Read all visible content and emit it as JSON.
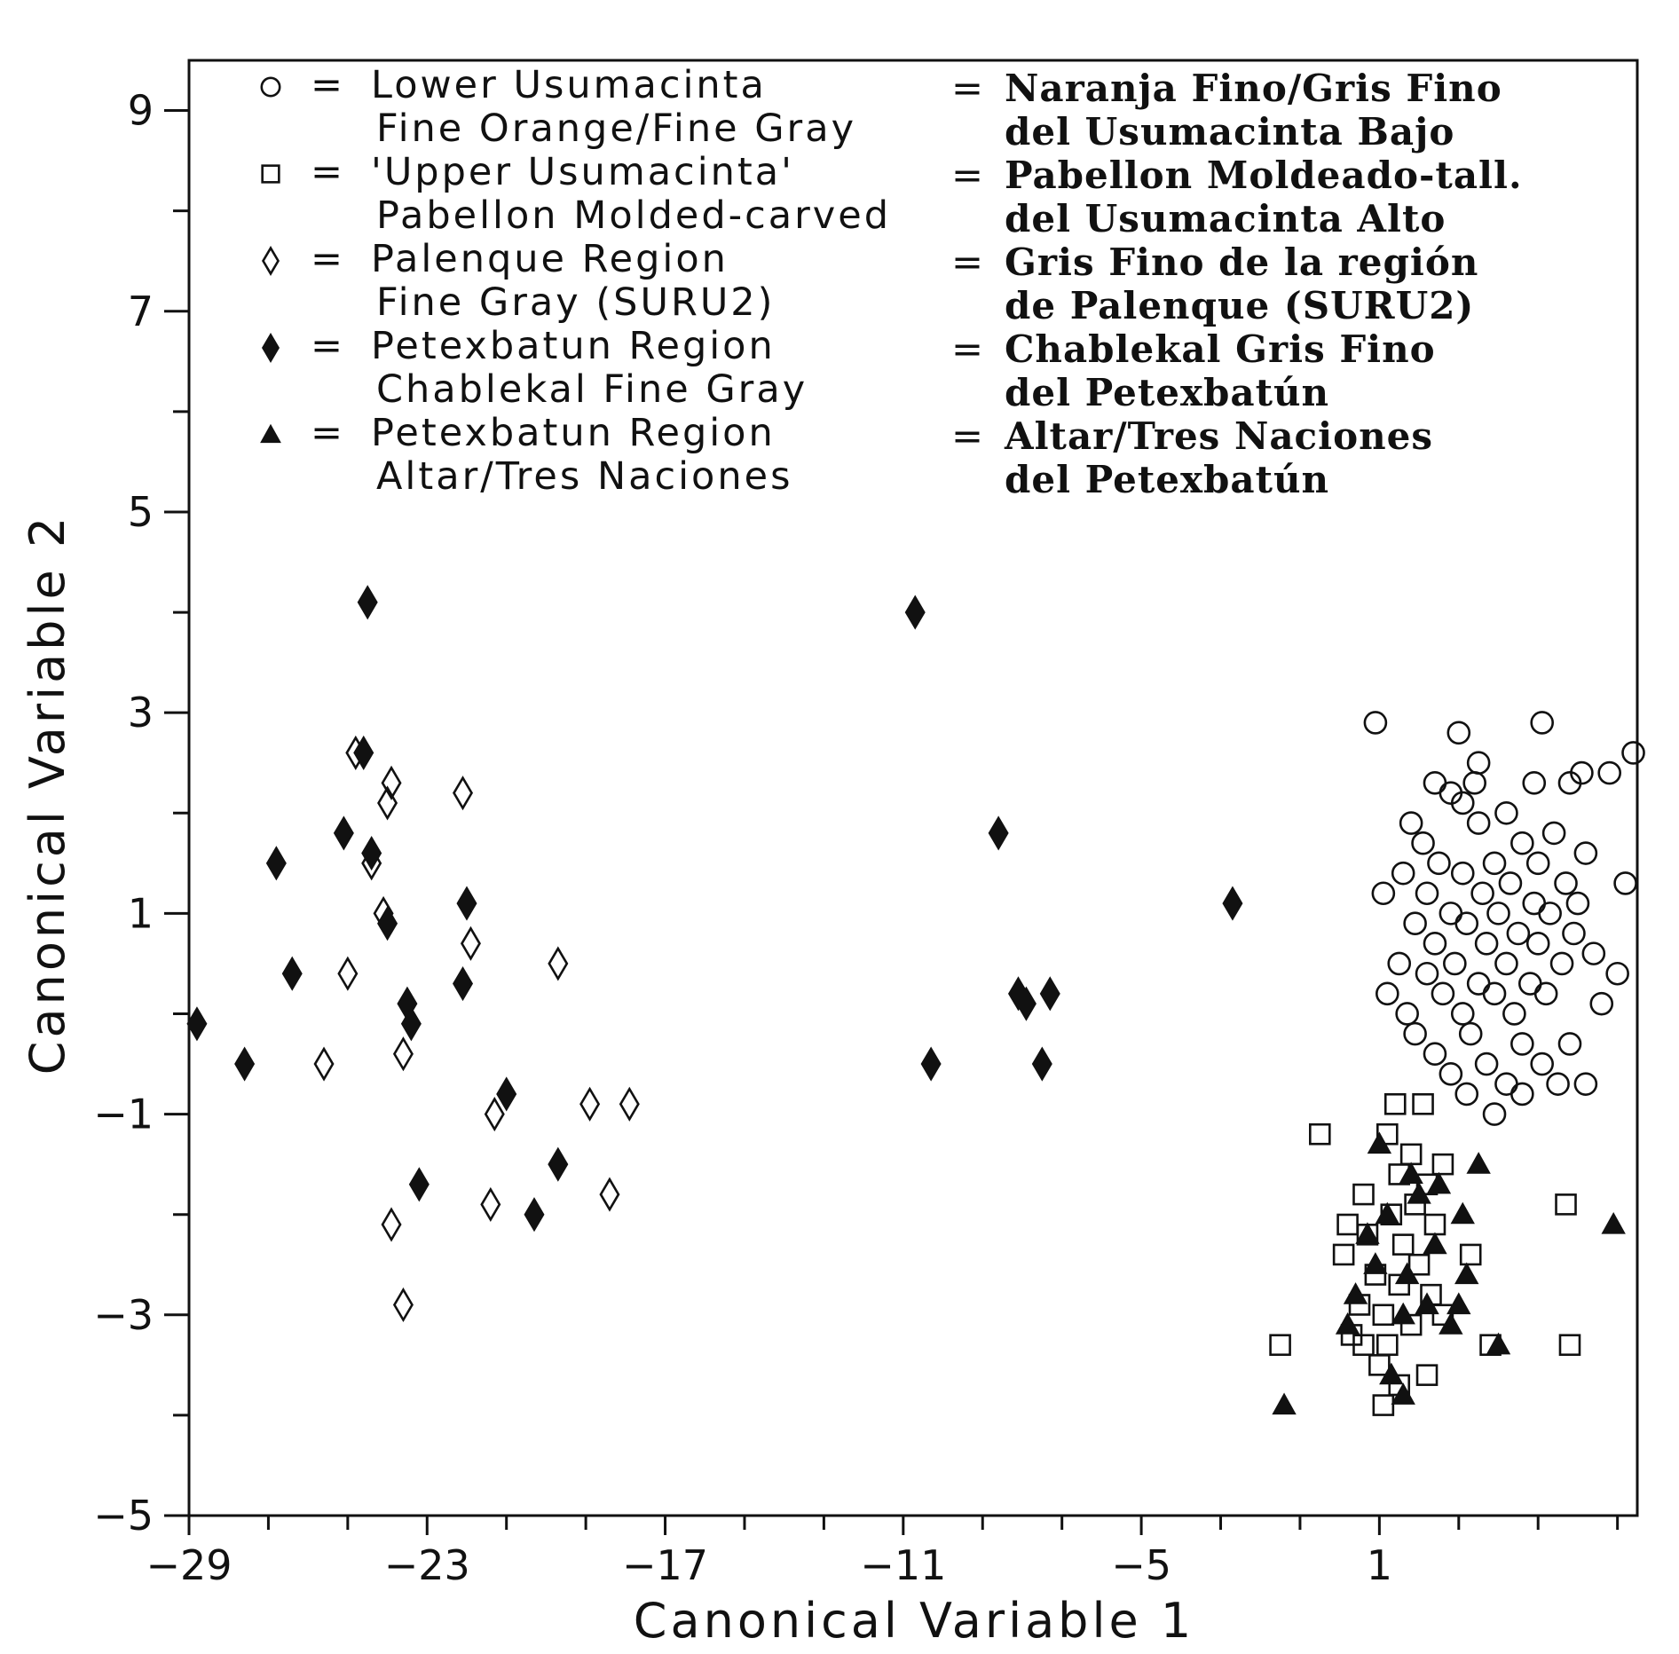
{
  "chart_data": {
    "type": "scatter",
    "xlabel": "Canonical Variable 1",
    "ylabel": "Canonical Variable 2",
    "xlim": [
      -29,
      7.5
    ],
    "ylim": [
      -5,
      9.5
    ],
    "xticks": [
      -29,
      -23,
      -17,
      -11,
      -5,
      1
    ],
    "yticks": [
      -5,
      -3,
      -1,
      1,
      3,
      5,
      7,
      9
    ],
    "legend_placement": "top, inside plot",
    "grid": false,
    "series": [
      {
        "key": "lower_usumacinta",
        "marker": "circle-open",
        "legend_en": [
          "Lower Usumacinta",
          "Fine Orange/Fine Gray"
        ],
        "legend_es": [
          "Naranja Fino/Gris Fino",
          "del Usumacinta Bajo"
        ],
        "points": [
          [
            0.9,
            2.9
          ],
          [
            5.1,
            2.9
          ],
          [
            3.0,
            2.8
          ],
          [
            7.4,
            2.6
          ],
          [
            3.5,
            2.5
          ],
          [
            6.1,
            2.4
          ],
          [
            6.8,
            2.4
          ],
          [
            2.4,
            2.3
          ],
          [
            4.9,
            2.3
          ],
          [
            2.8,
            2.2
          ],
          [
            3.4,
            2.3
          ],
          [
            5.8,
            2.3
          ],
          [
            3.1,
            2.1
          ],
          [
            4.2,
            2.0
          ],
          [
            1.8,
            1.9
          ],
          [
            3.5,
            1.9
          ],
          [
            5.4,
            1.8
          ],
          [
            2.1,
            1.7
          ],
          [
            4.6,
            1.7
          ],
          [
            6.2,
            1.6
          ],
          [
            2.5,
            1.5
          ],
          [
            3.9,
            1.5
          ],
          [
            5.0,
            1.5
          ],
          [
            1.6,
            1.4
          ],
          [
            3.1,
            1.4
          ],
          [
            4.3,
            1.3
          ],
          [
            5.7,
            1.3
          ],
          [
            7.2,
            1.3
          ],
          [
            1.1,
            1.2
          ],
          [
            2.2,
            1.2
          ],
          [
            3.6,
            1.2
          ],
          [
            4.9,
            1.1
          ],
          [
            6.0,
            1.1
          ],
          [
            2.8,
            1.0
          ],
          [
            4.0,
            1.0
          ],
          [
            5.3,
            1.0
          ],
          [
            1.9,
            0.9
          ],
          [
            3.2,
            0.9
          ],
          [
            4.5,
            0.8
          ],
          [
            5.9,
            0.8
          ],
          [
            2.4,
            0.7
          ],
          [
            3.7,
            0.7
          ],
          [
            5.0,
            0.7
          ],
          [
            6.4,
            0.6
          ],
          [
            1.5,
            0.5
          ],
          [
            2.9,
            0.5
          ],
          [
            4.2,
            0.5
          ],
          [
            5.6,
            0.5
          ],
          [
            7.0,
            0.4
          ],
          [
            2.2,
            0.4
          ],
          [
            3.5,
            0.3
          ],
          [
            4.8,
            0.3
          ],
          [
            1.2,
            0.2
          ],
          [
            2.6,
            0.2
          ],
          [
            3.9,
            0.2
          ],
          [
            5.2,
            0.2
          ],
          [
            6.6,
            0.1
          ],
          [
            1.7,
            0.0
          ],
          [
            3.1,
            0.0
          ],
          [
            4.4,
            0.0
          ],
          [
            1.9,
            -0.2
          ],
          [
            3.3,
            -0.2
          ],
          [
            4.6,
            -0.3
          ],
          [
            5.8,
            -0.3
          ],
          [
            2.4,
            -0.4
          ],
          [
            3.7,
            -0.5
          ],
          [
            5.1,
            -0.5
          ],
          [
            2.8,
            -0.6
          ],
          [
            4.2,
            -0.7
          ],
          [
            5.5,
            -0.7
          ],
          [
            3.2,
            -0.8
          ],
          [
            4.6,
            -0.8
          ],
          [
            3.9,
            -1.0
          ],
          [
            6.2,
            -0.7
          ]
        ]
      },
      {
        "key": "upper_usumacinta",
        "marker": "square-open",
        "legend_en": [
          "'Upper Usumacinta'",
          "Pabellon Molded-carved"
        ],
        "legend_es": [
          "Pabellon Moldeado-tall.",
          "del Usumacinta Alto"
        ],
        "points": [
          [
            1.4,
            -0.9
          ],
          [
            2.1,
            -0.9
          ],
          [
            -0.5,
            -1.2
          ],
          [
            1.2,
            -1.2
          ],
          [
            1.8,
            -1.4
          ],
          [
            2.6,
            -1.5
          ],
          [
            1.5,
            -1.6
          ],
          [
            2.2,
            -1.7
          ],
          [
            0.6,
            -1.8
          ],
          [
            1.9,
            -1.9
          ],
          [
            1.3,
            -2.0
          ],
          [
            0.2,
            -2.1
          ],
          [
            2.4,
            -2.1
          ],
          [
            0.7,
            -2.2
          ],
          [
            1.6,
            -2.3
          ],
          [
            0.1,
            -2.4
          ],
          [
            2.0,
            -2.5
          ],
          [
            3.3,
            -2.4
          ],
          [
            0.9,
            -2.6
          ],
          [
            1.5,
            -2.7
          ],
          [
            2.3,
            -2.8
          ],
          [
            0.5,
            -2.9
          ],
          [
            1.1,
            -3.0
          ],
          [
            1.8,
            -3.1
          ],
          [
            2.6,
            -3.0
          ],
          [
            0.3,
            -3.2
          ],
          [
            1.2,
            -3.3
          ],
          [
            -1.5,
            -3.3
          ],
          [
            0.6,
            -3.3
          ],
          [
            3.8,
            -3.3
          ],
          [
            5.8,
            -3.3
          ],
          [
            1.0,
            -3.5
          ],
          [
            2.2,
            -3.6
          ],
          [
            1.5,
            -3.7
          ],
          [
            1.1,
            -3.9
          ],
          [
            5.7,
            -1.9
          ]
        ]
      },
      {
        "key": "palenque",
        "marker": "diamond-open",
        "legend_en": [
          "Palenque Region",
          "Fine Gray (SURU2)"
        ],
        "legend_es": [
          "Gris Fino de la región",
          "de Palenque (SURU2)"
        ],
        "points": [
          [
            -24.8,
            2.6
          ],
          [
            -23.9,
            2.3
          ],
          [
            -22.1,
            2.2
          ],
          [
            -24.0,
            2.1
          ],
          [
            -24.4,
            1.5
          ],
          [
            -24.1,
            1.0
          ],
          [
            -21.9,
            0.7
          ],
          [
            -25.0,
            0.4
          ],
          [
            -19.7,
            0.5
          ],
          [
            -25.6,
            -0.5
          ],
          [
            -23.6,
            -0.4
          ],
          [
            -21.3,
            -1.0
          ],
          [
            -18.9,
            -0.9
          ],
          [
            -17.9,
            -0.9
          ],
          [
            -21.4,
            -1.9
          ],
          [
            -18.4,
            -1.8
          ],
          [
            -23.9,
            -2.1
          ],
          [
            -23.6,
            -2.9
          ]
        ]
      },
      {
        "key": "petexbatun_chablekal",
        "marker": "diamond-filled",
        "legend_en": [
          "Petexbatun Region",
          "Chablekal Fine Gray"
        ],
        "legend_es": [
          "Chablekal Gris Fino",
          "del Petexbatún"
        ],
        "points": [
          [
            -24.5,
            4.1
          ],
          [
            -10.7,
            4.0
          ],
          [
            -24.6,
            2.6
          ],
          [
            -25.1,
            1.8
          ],
          [
            -24.4,
            1.6
          ],
          [
            -8.6,
            1.8
          ],
          [
            -26.8,
            1.5
          ],
          [
            -22.0,
            1.1
          ],
          [
            -2.7,
            1.1
          ],
          [
            -24.0,
            0.9
          ],
          [
            -26.4,
            0.4
          ],
          [
            -22.1,
            0.3
          ],
          [
            -23.5,
            0.1
          ],
          [
            -8.1,
            0.2
          ],
          [
            -7.9,
            0.1
          ],
          [
            -7.3,
            0.2
          ],
          [
            -28.8,
            -0.1
          ],
          [
            -23.4,
            -0.1
          ],
          [
            -27.6,
            -0.5
          ],
          [
            -10.3,
            -0.5
          ],
          [
            -7.5,
            -0.5
          ],
          [
            -21.0,
            -0.8
          ],
          [
            -19.7,
            -1.5
          ],
          [
            -23.2,
            -1.7
          ],
          [
            -20.3,
            -2.0
          ]
        ]
      },
      {
        "key": "petexbatun_altar",
        "marker": "triangle-filled",
        "legend_en": [
          "Petexbatun Region",
          "Altar/Tres Naciones"
        ],
        "legend_es": [
          "Altar/Tres Naciones",
          "del Petexbatún"
        ],
        "points": [
          [
            1.0,
            -1.3
          ],
          [
            1.8,
            -1.6
          ],
          [
            2.5,
            -1.7
          ],
          [
            3.5,
            -1.5
          ],
          [
            2.0,
            -1.8
          ],
          [
            1.2,
            -2.0
          ],
          [
            3.1,
            -2.0
          ],
          [
            0.7,
            -2.2
          ],
          [
            6.9,
            -2.1
          ],
          [
            2.4,
            -2.3
          ],
          [
            0.9,
            -2.5
          ],
          [
            1.7,
            -2.6
          ],
          [
            3.2,
            -2.6
          ],
          [
            0.4,
            -2.8
          ],
          [
            2.2,
            -2.9
          ],
          [
            3.0,
            -2.9
          ],
          [
            1.6,
            -3.0
          ],
          [
            0.2,
            -3.1
          ],
          [
            2.8,
            -3.1
          ],
          [
            4.0,
            -3.3
          ],
          [
            1.3,
            -3.6
          ],
          [
            -1.4,
            -3.9
          ],
          [
            1.6,
            -3.8
          ]
        ]
      }
    ]
  }
}
